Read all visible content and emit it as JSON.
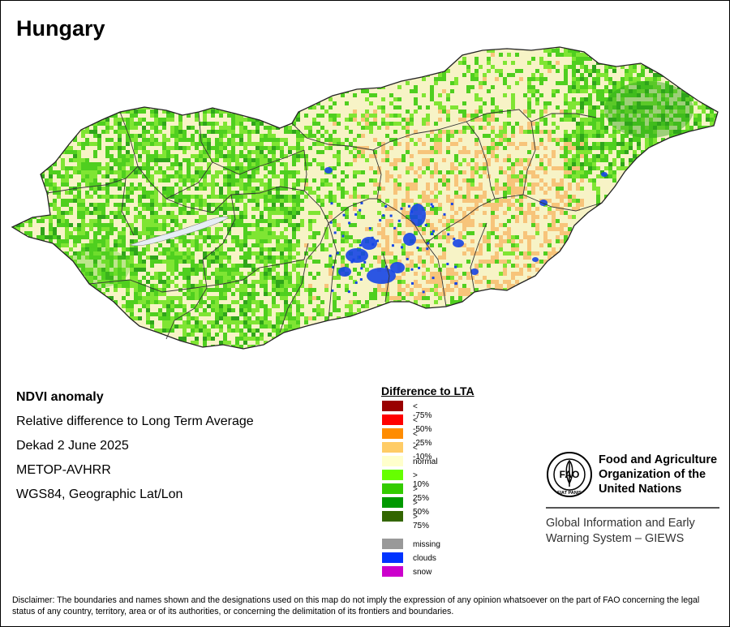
{
  "title": "Hungary",
  "info": {
    "product": "NDVI anomaly",
    "description": "Relative difference to Long Term Average",
    "period": "Dekad 2 June 2025",
    "sensor": "METOP-AVHRR",
    "projection": "WGS84, Geographic Lat/Lon"
  },
  "legend": {
    "title": "Difference to LTA",
    "classes": [
      {
        "label": "< -75%",
        "color": "#990000"
      },
      {
        "label": "< -50%",
        "color": "#ff0000"
      },
      {
        "label": "< -25%",
        "color": "#ff8c00"
      },
      {
        "label": "< -10%",
        "color": "#ffcc66"
      },
      {
        "label": "normal",
        "color": "#ffffcc"
      },
      {
        "label": "> 10%",
        "color": "#66ff00"
      },
      {
        "label": "> 25%",
        "color": "#33cc00"
      },
      {
        "label": "> 50%",
        "color": "#009900"
      },
      {
        "label": "> 75%",
        "color": "#336600"
      }
    ],
    "extra": [
      {
        "label": "missing",
        "color": "#999999"
      },
      {
        "label": "clouds",
        "color": "#0033ff"
      },
      {
        "label": "snow",
        "color": "#cc00cc"
      }
    ]
  },
  "map_colors": {
    "normal": "#f7f3c6",
    "green_light": "#7fe533",
    "green": "#4fcf1f",
    "green_dark": "#2fa51a",
    "orange": "#f7c47a",
    "clouds": "#1545e6",
    "border": "#333333",
    "water": "#e6eef5"
  },
  "fao": {
    "logo_text": "FIAT PANIS",
    "logo_letters": "FAO",
    "name_line1": "Food and Agriculture",
    "name_line2": "Organization of the",
    "name_line3": "United Nations",
    "giews_line1": "Global Information and Early",
    "giews_line2": "Warning System – GIEWS"
  },
  "disclaimer": "Disclaimer: The boundaries and names shown and the designations used on this map do not imply the expression of any opinion whatsoever on the part of FAO concerning the legal status of any country, territory, area or of its authorities, or concerning the delimitation of its frontiers and boundaries."
}
